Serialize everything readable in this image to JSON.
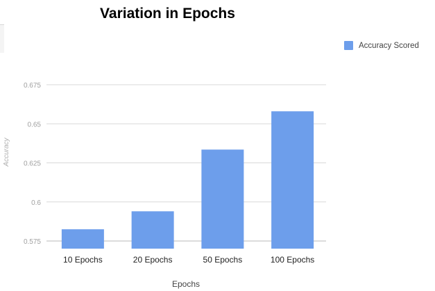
{
  "chart_data": {
    "type": "bar",
    "title": "Variation in Epochs",
    "xlabel": "Epochs",
    "ylabel": "Accuracy",
    "categories": [
      "10 Epochs",
      "20 Epochs",
      "50 Epochs",
      "100 Epochs"
    ],
    "series": [
      {
        "name": "Accuracy Scored",
        "values": [
          0.5825,
          0.594,
          0.6335,
          0.658
        ],
        "color": "#6d9eeb"
      }
    ],
    "yticks": [
      "0.575",
      "0.6",
      "0.625",
      "0.65",
      "0.675"
    ],
    "ylim": [
      0.575,
      0.675
    ],
    "grid": true,
    "legend_position": "right"
  }
}
